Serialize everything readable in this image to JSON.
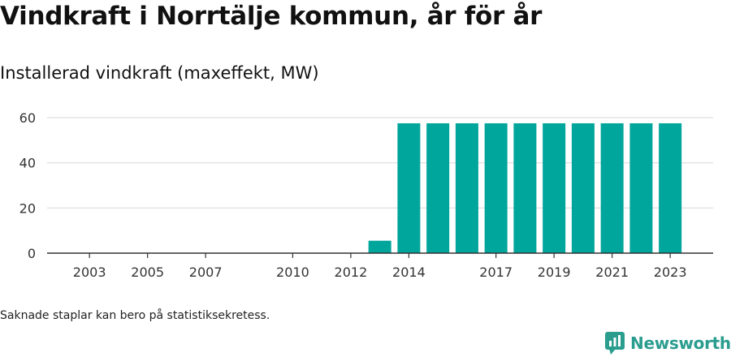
{
  "title": "Vindkraft i Norrtälje kommun, år för år",
  "subtitle": "Installerad vindkraft (maxeffekt, MW)",
  "note": "Saknade staplar kan bero på statistiksekretess.",
  "brand": {
    "name": "Newsworthy",
    "icon": "newsworthy-logo-icon"
  },
  "colors": {
    "bar": "#00a59b",
    "grid": "#dddddd",
    "axis": "#333333",
    "brand": "#2a9d8f"
  },
  "chart_data": {
    "type": "bar",
    "categories": [
      2002,
      2003,
      2004,
      2005,
      2006,
      2007,
      2008,
      2009,
      2010,
      2011,
      2012,
      2013,
      2014,
      2015,
      2016,
      2017,
      2018,
      2019,
      2020,
      2021,
      2022,
      2023
    ],
    "values": [
      0,
      0,
      0,
      0,
      0,
      0,
      0,
      0,
      0,
      0,
      0,
      5.5,
      57.5,
      57.5,
      57.5,
      57.5,
      57.5,
      57.5,
      57.5,
      57.5,
      57.5,
      57.5
    ],
    "x_tick_labels": [
      2003,
      2005,
      2007,
      2010,
      2012,
      2014,
      2017,
      2019,
      2021,
      2023
    ],
    "y_ticks": [
      0,
      20,
      40,
      60
    ],
    "ylim": [
      0,
      60
    ],
    "grid": true,
    "legend": "none"
  }
}
